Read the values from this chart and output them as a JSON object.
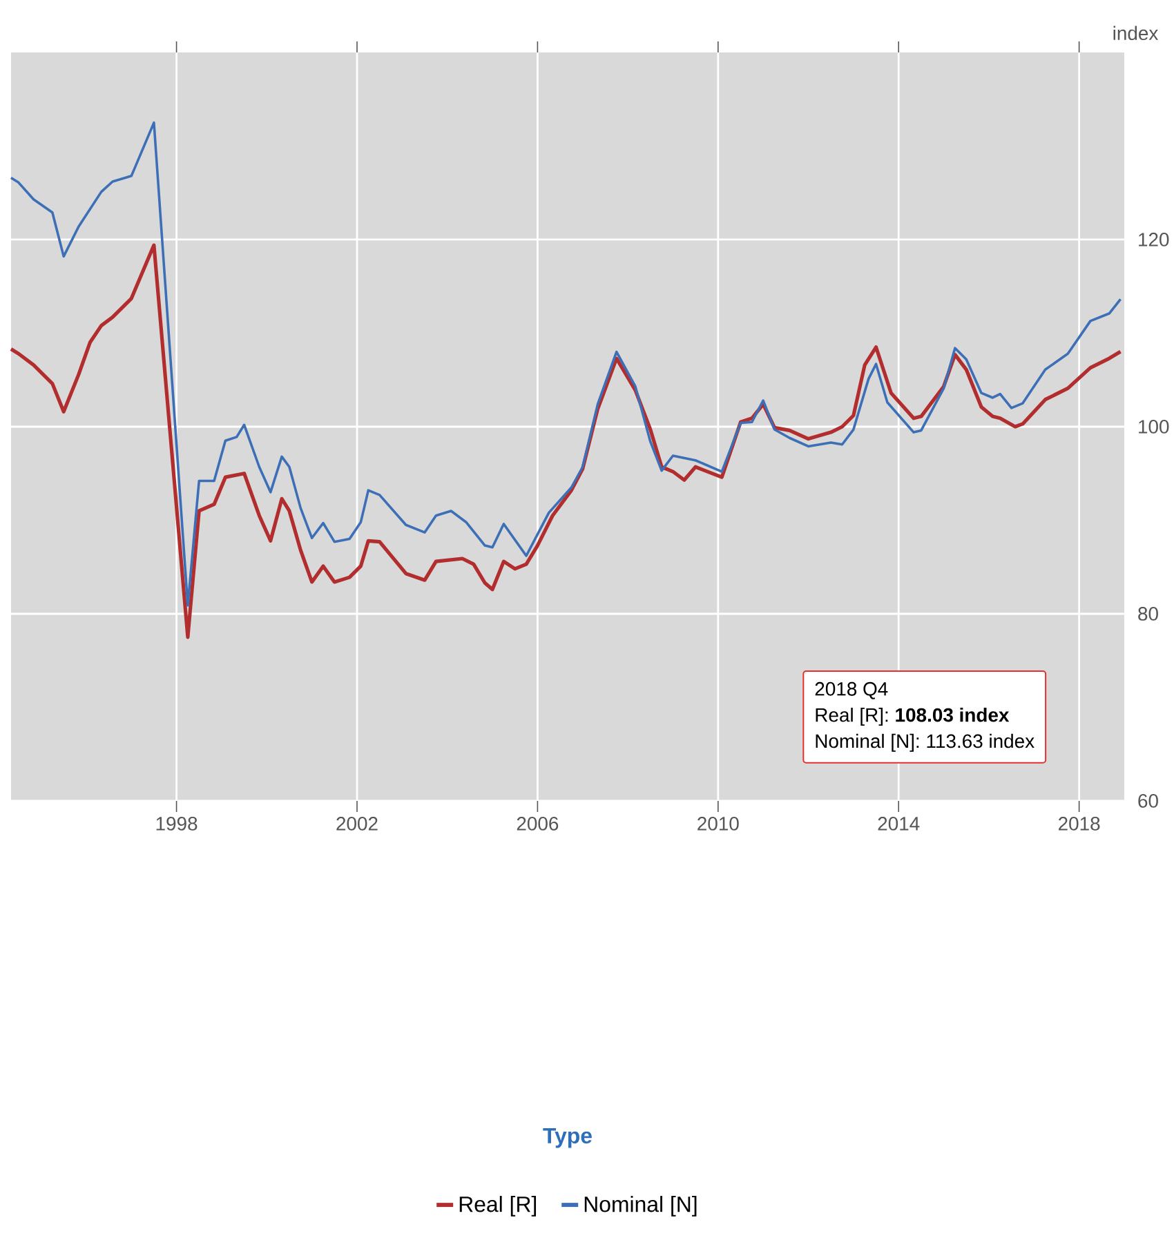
{
  "chart_data": {
    "type": "line",
    "ylabel": "index",
    "legend_title": "Type",
    "legend": "bottom",
    "grid": true,
    "marker": "none",
    "xlim": [
      "1994-05",
      "2019-01"
    ],
    "xticks": [
      "1998",
      "2002",
      "2006",
      "2010",
      "2014",
      "2018"
    ],
    "ylim": [
      60,
      140
    ],
    "yticks": [
      60,
      80,
      100,
      120
    ],
    "annotations": [
      "2018 Q4",
      "Real [R]: **108.03 index**",
      "Nominal [N]: 113.63 index"
    ],
    "series": [
      {
        "name": "Real [R]",
        "color": "#b22d2d",
        "x": [
          "1994-05",
          "1994-07",
          "1994-11",
          "1995-04",
          "1995-07",
          "1995-11",
          "1996-02",
          "1996-05",
          "1996-08",
          "1997-01",
          "1997-07",
          "1998-04",
          "1998-07",
          "1998-11",
          "1999-02",
          "1999-07",
          "1999-11",
          "2000-02",
          "2000-05",
          "2000-07",
          "2000-10",
          "2001-01",
          "2001-04",
          "2001-07",
          "2001-11",
          "2002-02",
          "2002-04",
          "2002-07",
          "2003-02",
          "2003-07",
          "2003-10",
          "2004-05",
          "2004-08",
          "2004-11",
          "2005-01",
          "2005-04",
          "2005-07",
          "2005-10",
          "2006-01",
          "2006-05",
          "2006-10",
          "2007-01",
          "2007-05",
          "2007-10",
          "2008-03",
          "2008-07",
          "2008-10",
          "2009-01",
          "2009-04",
          "2009-07",
          "2010-02",
          "2010-07",
          "2010-10",
          "2011-01",
          "2011-04",
          "2011-08",
          "2012-01",
          "2012-07",
          "2012-10",
          "2013-01",
          "2013-04",
          "2013-07",
          "2013-11",
          "2014-05",
          "2014-07",
          "2015-01",
          "2015-04",
          "2015-07",
          "2015-11",
          "2016-02",
          "2016-04",
          "2016-08",
          "2016-10",
          "2017-04",
          "2017-10",
          "2018-04",
          "2018-09",
          "2018-12"
        ],
        "values": [
          108.3,
          107.8,
          106.6,
          104.6,
          101.6,
          105.6,
          109.0,
          110.8,
          111.7,
          113.7,
          119.4,
          77.5,
          91.0,
          91.7,
          94.6,
          95.0,
          90.5,
          87.8,
          92.3,
          91.0,
          86.8,
          83.4,
          85.1,
          83.4,
          83.9,
          85.1,
          87.8,
          87.7,
          84.3,
          83.6,
          85.6,
          85.9,
          85.3,
          83.3,
          82.6,
          85.6,
          84.8,
          85.3,
          87.3,
          90.5,
          93.2,
          95.5,
          101.9,
          107.3,
          103.9,
          99.7,
          95.7,
          95.2,
          94.3,
          95.7,
          94.6,
          100.5,
          100.9,
          102.4,
          99.9,
          99.6,
          98.7,
          99.4,
          100.0,
          101.2,
          106.6,
          108.5,
          103.6,
          100.9,
          101.1,
          104.3,
          107.7,
          106.1,
          102.1,
          101.1,
          100.9,
          100.0,
          100.3,
          102.9,
          104.1,
          106.3,
          107.3,
          108.03
        ]
      },
      {
        "name": "Nominal [N]",
        "color": "#3d6fb6",
        "x": [
          "1994-05",
          "1994-07",
          "1994-11",
          "1995-04",
          "1995-07",
          "1995-11",
          "1996-05",
          "1996-08",
          "1997-01",
          "1997-07",
          "1998-04",
          "1998-07",
          "1998-11",
          "1999-02",
          "1999-05",
          "1999-07",
          "1999-11",
          "2000-02",
          "2000-05",
          "2000-07",
          "2000-10",
          "2001-01",
          "2001-04",
          "2001-07",
          "2001-11",
          "2002-02",
          "2002-04",
          "2002-07",
          "2003-02",
          "2003-07",
          "2003-10",
          "2004-02",
          "2004-06",
          "2004-11",
          "2005-01",
          "2005-04",
          "2005-10",
          "2006-04",
          "2006-10",
          "2007-01",
          "2007-05",
          "2007-10",
          "2008-03",
          "2008-07",
          "2008-10",
          "2009-01",
          "2009-07",
          "2010-02",
          "2010-07",
          "2010-10",
          "2011-01",
          "2011-04",
          "2011-08",
          "2012-01",
          "2012-07",
          "2012-10",
          "2013-01",
          "2013-05",
          "2013-07",
          "2013-10",
          "2014-05",
          "2014-07",
          "2015-01",
          "2015-04",
          "2015-07",
          "2015-11",
          "2016-02",
          "2016-04",
          "2016-07",
          "2016-10",
          "2017-04",
          "2017-10",
          "2018-04",
          "2018-09",
          "2018-12"
        ],
        "values": [
          126.6,
          126.1,
          124.3,
          122.9,
          118.2,
          121.4,
          125.1,
          126.2,
          126.8,
          132.5,
          80.9,
          94.2,
          94.2,
          98.5,
          98.9,
          100.2,
          95.7,
          93.0,
          96.8,
          95.7,
          91.3,
          88.1,
          89.7,
          87.7,
          88.0,
          89.8,
          93.2,
          92.7,
          89.5,
          88.7,
          90.5,
          91.0,
          89.8,
          87.3,
          87.1,
          89.6,
          86.2,
          90.8,
          93.5,
          95.7,
          102.4,
          108.0,
          104.3,
          98.4,
          95.3,
          96.9,
          96.4,
          95.2,
          100.4,
          100.5,
          102.8,
          99.7,
          98.8,
          97.9,
          98.3,
          98.1,
          99.7,
          105.1,
          106.7,
          102.6,
          99.4,
          99.6,
          104.1,
          108.4,
          107.2,
          103.6,
          103.1,
          103.5,
          102.0,
          102.5,
          106.1,
          107.8,
          111.3,
          112.1,
          113.63
        ]
      }
    ]
  }
}
